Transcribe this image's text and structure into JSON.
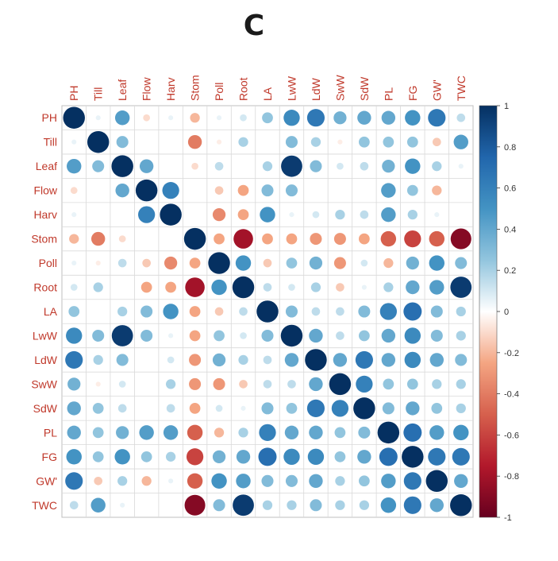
{
  "panel_label": "C",
  "chart_data": {
    "type": "heatmap",
    "style": "correlation-circles",
    "variables": [
      "PH",
      "Till",
      "Leaf",
      "Flow",
      "Harv",
      "Stom",
      "Poll",
      "Root",
      "LA",
      "LwW",
      "LdW",
      "SwW",
      "SdW",
      "PL",
      "FG",
      "GW'",
      "TWC"
    ],
    "matrix": [
      [
        1.0,
        0.05,
        0.45,
        -0.1,
        0.05,
        -0.2,
        0.05,
        0.1,
        0.25,
        0.55,
        0.65,
        0.35,
        0.4,
        0.4,
        0.5,
        0.65,
        0.15
      ],
      [
        0.05,
        1.0,
        0.3,
        0.0,
        0.0,
        -0.4,
        -0.05,
        0.2,
        0.0,
        0.3,
        0.2,
        -0.05,
        0.25,
        0.25,
        0.25,
        -0.15,
        0.45
      ],
      [
        0.45,
        0.3,
        1.0,
        0.4,
        0.0,
        -0.1,
        0.15,
        0.0,
        0.2,
        0.95,
        0.3,
        0.1,
        0.15,
        0.35,
        0.5,
        0.2,
        0.05
      ],
      [
        -0.1,
        0.0,
        0.4,
        1.0,
        0.6,
        0.0,
        -0.15,
        -0.25,
        0.3,
        0.3,
        0.0,
        0.0,
        0.0,
        0.45,
        0.25,
        -0.2,
        0.0
      ],
      [
        0.05,
        0.0,
        0.0,
        0.6,
        1.0,
        0.0,
        -0.35,
        -0.25,
        0.5,
        0.05,
        0.1,
        0.2,
        0.15,
        0.45,
        0.2,
        0.05,
        0.0
      ],
      [
        -0.2,
        -0.4,
        -0.1,
        0.0,
        0.0,
        1.0,
        -0.25,
        -0.8,
        -0.25,
        -0.25,
        -0.3,
        -0.3,
        -0.25,
        -0.5,
        -0.6,
        -0.5,
        -0.9
      ],
      [
        0.05,
        -0.05,
        0.15,
        -0.15,
        -0.35,
        -0.25,
        1.0,
        0.5,
        -0.15,
        0.25,
        0.35,
        -0.3,
        0.1,
        -0.2,
        0.35,
        0.5,
        0.3
      ],
      [
        0.1,
        0.2,
        0.0,
        -0.25,
        -0.25,
        -0.8,
        0.5,
        1.0,
        0.15,
        0.1,
        0.2,
        -0.15,
        0.05,
        0.2,
        0.4,
        0.45,
        0.95
      ],
      [
        0.25,
        0.0,
        0.2,
        0.3,
        0.5,
        -0.25,
        -0.15,
        0.15,
        1.0,
        0.3,
        0.15,
        0.15,
        0.3,
        0.6,
        0.7,
        0.3,
        0.2
      ],
      [
        0.55,
        0.3,
        0.95,
        0.3,
        0.05,
        -0.25,
        0.25,
        0.1,
        0.3,
        1.0,
        0.4,
        0.15,
        0.25,
        0.4,
        0.55,
        0.3,
        0.2
      ],
      [
        0.65,
        0.2,
        0.3,
        0.0,
        0.1,
        -0.3,
        0.35,
        0.2,
        0.15,
        0.4,
        1.0,
        0.4,
        0.65,
        0.4,
        0.55,
        0.4,
        0.3
      ],
      [
        0.35,
        -0.05,
        0.1,
        0.0,
        0.2,
        -0.3,
        -0.3,
        -0.15,
        0.15,
        0.15,
        0.4,
        1.0,
        0.6,
        0.25,
        0.25,
        0.2,
        0.2
      ],
      [
        0.4,
        0.25,
        0.15,
        0.0,
        0.15,
        -0.25,
        0.1,
        0.05,
        0.3,
        0.25,
        0.65,
        0.6,
        1.0,
        0.3,
        0.4,
        0.25,
        0.2
      ],
      [
        0.4,
        0.25,
        0.35,
        0.45,
        0.45,
        -0.5,
        -0.2,
        0.2,
        0.6,
        0.4,
        0.4,
        0.25,
        0.3,
        1.0,
        0.7,
        0.45,
        0.5
      ],
      [
        0.5,
        0.25,
        0.5,
        0.25,
        0.2,
        -0.6,
        0.35,
        0.4,
        0.7,
        0.55,
        0.55,
        0.25,
        0.4,
        0.7,
        1.0,
        0.65,
        0.65
      ],
      [
        0.65,
        -0.15,
        0.2,
        -0.2,
        0.05,
        -0.5,
        0.5,
        0.45,
        0.3,
        0.3,
        0.4,
        0.2,
        0.25,
        0.45,
        0.65,
        1.0,
        0.4
      ],
      [
        0.15,
        0.45,
        0.05,
        0.0,
        0.0,
        -0.9,
        0.3,
        0.95,
        0.2,
        0.2,
        0.3,
        0.2,
        0.2,
        0.5,
        0.65,
        0.4,
        1.0
      ]
    ],
    "colorbar": {
      "min": -1,
      "max": 1,
      "ticks": [
        "1",
        "0.8",
        "0.6",
        "0.4",
        "0.2",
        "0",
        "-0.2",
        "-0.4",
        "-0.6",
        "-0.8",
        "-1"
      ]
    },
    "colors": {
      "negative_strong": "#67001f",
      "negative_mid": "#d6604d",
      "neutral": "#ffffff",
      "positive_mid": "#4393c3",
      "positive_strong": "#053061",
      "label": "#c0392b",
      "grid": "#d9d9d9"
    }
  }
}
